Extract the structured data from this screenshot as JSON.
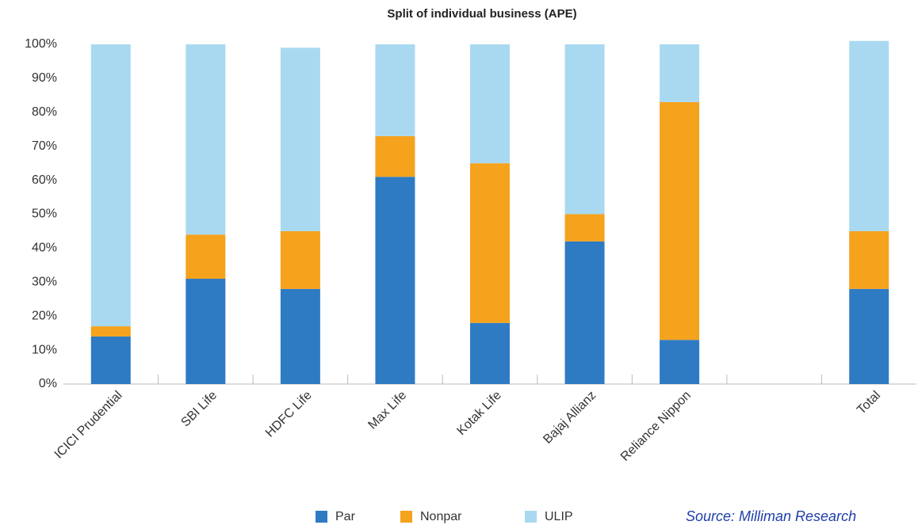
{
  "chart_data": {
    "type": "stacked_bar",
    "title": "Split of individual business (APE)",
    "categories": [
      "ICICI Prudential",
      "SBI Life",
      "HDFC Life",
      "Max Life",
      "Kotak Life",
      "Bajaj Allianz",
      "Reliance Nippon",
      null,
      "Total"
    ],
    "series": [
      {
        "name": "Par",
        "color": "#2e7bc4",
        "values": [
          14,
          31,
          28,
          61,
          18,
          42,
          13,
          null,
          28
        ]
      },
      {
        "name": "Nonpar",
        "color": "#f5a21c",
        "values": [
          3,
          13,
          17,
          12,
          47,
          8,
          70,
          null,
          17
        ]
      },
      {
        "name": "ULIP",
        "color": "#a9d9f0",
        "values": [
          83,
          56,
          54,
          27,
          35,
          50,
          17,
          null,
          56
        ]
      }
    ],
    "ylim": [
      0,
      100
    ],
    "yticks": [
      {
        "value": 0,
        "label": "0%"
      },
      {
        "value": 10,
        "label": "10%"
      },
      {
        "value": 20,
        "label": "20%"
      },
      {
        "value": 30,
        "label": "30%"
      },
      {
        "value": 40,
        "label": "40%"
      },
      {
        "value": 50,
        "label": "50%"
      },
      {
        "value": 60,
        "label": "60%"
      },
      {
        "value": 70,
        "label": "70%"
      },
      {
        "value": 80,
        "label": "80%"
      },
      {
        "value": 90,
        "label": "90%"
      },
      {
        "value": 100,
        "label": "100%"
      }
    ],
    "grid": false,
    "legend": "bottom",
    "source": "Source: Milliman Research"
  }
}
